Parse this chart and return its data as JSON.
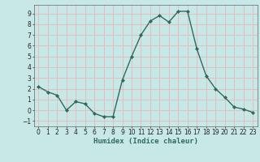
{
  "x": [
    0,
    1,
    2,
    3,
    4,
    5,
    6,
    7,
    8,
    9,
    10,
    11,
    12,
    13,
    14,
    15,
    16,
    17,
    18,
    19,
    20,
    21,
    22,
    23
  ],
  "y": [
    2.2,
    1.7,
    1.4,
    0.0,
    0.8,
    0.6,
    -0.3,
    -0.6,
    -0.6,
    2.8,
    5.0,
    7.0,
    8.3,
    8.8,
    8.2,
    9.2,
    9.2,
    5.7,
    3.2,
    2.0,
    1.2,
    0.3,
    0.1,
    -0.2
  ],
  "line_color": "#2d6b5e",
  "marker": "D",
  "marker_size": 2,
  "bg_color": "#c8e8e8",
  "grid_color": "#e8b8b8",
  "xlabel": "Humidex (Indice chaleur)",
  "ylim": [
    -1.5,
    9.8
  ],
  "xlim": [
    -0.5,
    23.5
  ],
  "yticks": [
    -1,
    0,
    1,
    2,
    3,
    4,
    5,
    6,
    7,
    8,
    9
  ],
  "xticks": [
    0,
    1,
    2,
    3,
    4,
    5,
    6,
    7,
    8,
    9,
    10,
    11,
    12,
    13,
    14,
    15,
    16,
    17,
    18,
    19,
    20,
    21,
    22,
    23
  ],
  "xlabel_fontsize": 6.5,
  "tick_fontsize": 5.5
}
